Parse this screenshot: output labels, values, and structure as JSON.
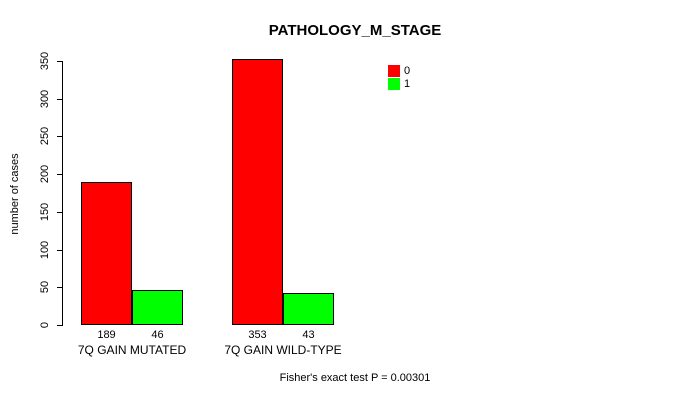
{
  "chart_data": {
    "type": "bar",
    "title": "PATHOLOGY_M_STAGE",
    "ylabel": "number of cases",
    "xlabel": "",
    "categories": [
      "7Q GAIN MUTATED",
      "7Q GAIN WILD-TYPE"
    ],
    "series": [
      {
        "name": "0",
        "color": "#ff0000",
        "values": [
          189,
          353
        ]
      },
      {
        "name": "1",
        "color": "#00ff00",
        "values": [
          46,
          43
        ]
      }
    ],
    "ylim": [
      0,
      350
    ],
    "yticks": [
      0,
      50,
      100,
      150,
      200,
      250,
      300,
      350
    ],
    "bar_value_labels_shown": true,
    "grid": false,
    "legend_position": "top-right-inside",
    "footer": "Fisher's exact test P = 0.00301"
  },
  "colors": {
    "background": "#ffffff",
    "axis": "#000000",
    "text": "#000000",
    "bar_border": "#000000"
  }
}
